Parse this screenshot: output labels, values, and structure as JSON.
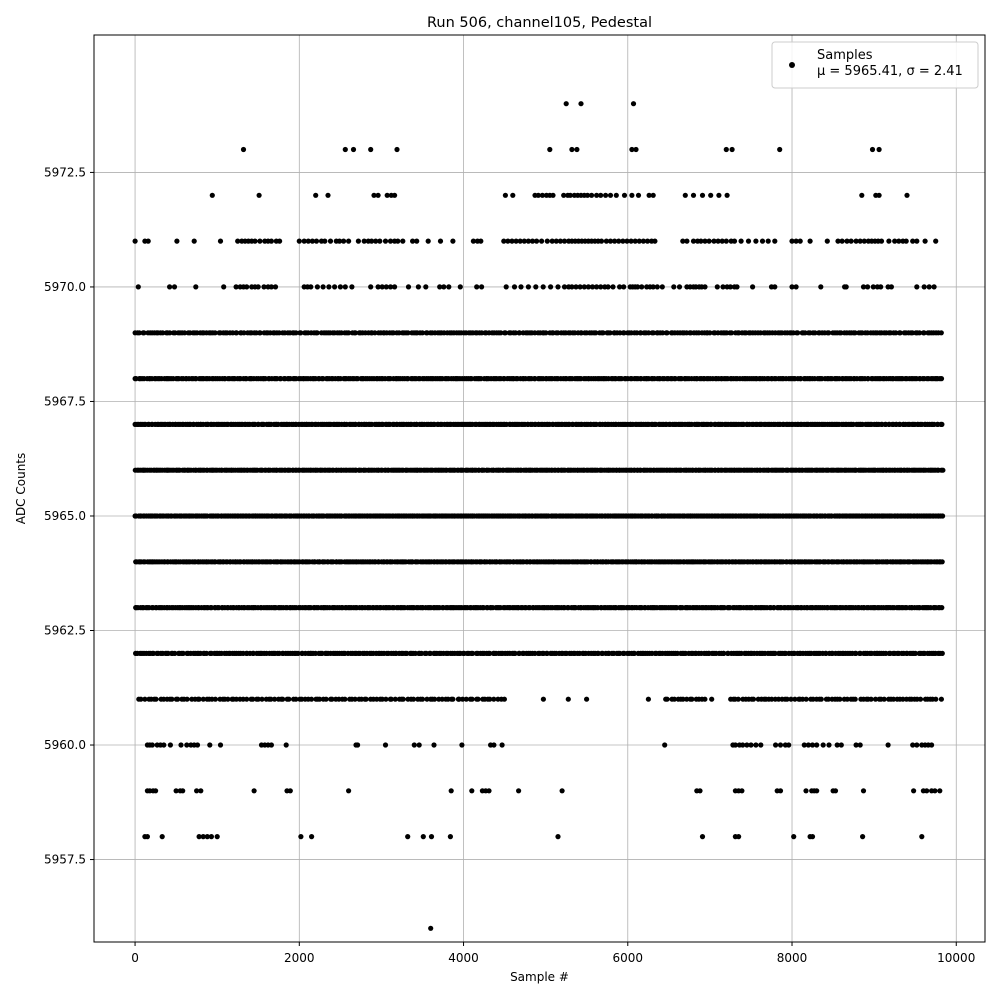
{
  "chart_data": {
    "type": "scatter",
    "title": "Run 506, channel105, Pedestal",
    "xlabel": "Sample #",
    "ylabel": "ADC Counts",
    "xlim": [
      -500,
      10350
    ],
    "ylim": [
      5955.7,
      5975.5
    ],
    "xticks": [
      0,
      2000,
      4000,
      6000,
      8000,
      10000
    ],
    "xtick_labels": [
      "0",
      "2000",
      "4000",
      "6000",
      "8000",
      "10000"
    ],
    "yticks": [
      5957.5,
      5960.0,
      5962.5,
      5965.0,
      5967.5,
      5970.0,
      5972.5
    ],
    "ytick_labels": [
      "5957.5",
      "5960.0",
      "5962.5",
      "5965.0",
      "5967.5",
      "5970.0",
      "5972.5"
    ],
    "grid": true,
    "legend_position": "top-right",
    "marker_color": "#000000",
    "series": [
      {
        "name": "Samples",
        "legend_stats": "μ = 5965.41, σ = 2.41",
        "x_range": [
          0,
          9850
        ],
        "levels": [
          {
            "y": 5956,
            "x": [
              3600
            ]
          },
          {
            "y": 5958,
            "x": [
              120,
              150,
              330,
              780,
              830,
              880,
              930,
              1000,
              2020,
              2150,
              3320,
              3510,
              3610,
              3840,
              5150,
              6910,
              7310,
              7350,
              8020,
              8220,
              8250,
              8860,
              9580
            ]
          },
          {
            "y": 5959,
            "x": [
              150,
              180,
              220,
              250,
              500,
              550,
              580,
              750,
              800,
              1450,
              1850,
              1890,
              2600,
              3850,
              4100,
              4230,
              4270,
              4310,
              4670,
              5200,
              6840,
              6880,
              7310,
              7350,
              7390,
              7820,
              7860,
              8170,
              8240,
              8270,
              8300,
              8500,
              8530,
              8870,
              9480,
              9600,
              9640,
              9700,
              9740,
              9800
            ]
          },
          {
            "y": 5960,
            "x": [
              150,
              180,
              210,
              270,
              310,
              350,
              430,
              560,
              630,
              680,
              720,
              760,
              910,
              1040,
              1540,
              1580,
              1620,
              1660,
              1840,
              2690,
              2710,
              3050,
              3400,
              3460,
              3640,
              3980,
              4330,
              4370,
              4470,
              6450,
              7280,
              7310,
              7360,
              7400,
              7450,
              7500,
              7560,
              7620,
              7800,
              7860,
              7920,
              7960,
              8150,
              8200,
              8250,
              8300,
              8380,
              8450,
              8550,
              8600,
              8780,
              8830,
              9170,
              9470,
              9520,
              9580,
              9620,
              9660,
              9700
            ]
          },
          {
            "type": "band",
            "y": 5961,
            "x_start": 40,
            "x_end": 9840,
            "count": 260,
            "gaps": [
              [
                4520,
                6450
              ],
              [
                6960,
                7250
              ]
            ]
          },
          {
            "type": "band",
            "y": 5962,
            "x_start": 0,
            "x_end": 9850,
            "count": 380,
            "gaps": []
          },
          {
            "type": "band",
            "y": 5963,
            "x_start": 0,
            "x_end": 9850,
            "count": 440,
            "gaps": []
          },
          {
            "type": "band",
            "y": 5964,
            "x_start": 0,
            "x_end": 9850,
            "count": 480,
            "gaps": []
          },
          {
            "type": "band",
            "y": 5965,
            "x_start": 0,
            "x_end": 9850,
            "count": 500,
            "gaps": []
          },
          {
            "type": "band",
            "y": 5966,
            "x_start": 0,
            "x_end": 9850,
            "count": 500,
            "gaps": []
          },
          {
            "type": "band",
            "y": 5967,
            "x_start": 0,
            "x_end": 9850,
            "count": 450,
            "gaps": []
          },
          {
            "type": "band",
            "y": 5968,
            "x_start": 0,
            "x_end": 9850,
            "count": 420,
            "gaps": []
          },
          {
            "type": "band",
            "y": 5969,
            "x_start": 0,
            "x_end": 9850,
            "count": 340,
            "gaps": []
          },
          {
            "y": 5970,
            "x": [
              40,
              420,
              480,
              740,
              1080,
              1230,
              1280,
              1320,
              1360,
              1420,
              1460,
              1500,
              1570,
              1620,
              1660,
              1710,
              2060,
              2100,
              2140,
              2220,
              2290,
              2360,
              2430,
              2500,
              2560,
              2640,
              2870,
              2960,
              3010,
              3060,
              3110,
              3160,
              3330,
              3450,
              3540,
              3710,
              3760,
              3820,
              3960,
              4160,
              4220,
              4520,
              4620,
              4700,
              4790,
              4880,
              4970,
              5060,
              5150,
              5230,
              5280,
              5320,
              5370,
              5420,
              5470,
              5520,
              5570,
              5620,
              5670,
              5720,
              5760,
              5820,
              5900,
              5950,
              6030,
              6060,
              6090,
              6120,
              6170,
              6230,
              6270,
              6310,
              6360,
              6420,
              6560,
              6630,
              6720,
              6760,
              6800,
              6830,
              6870,
              6900,
              6940,
              7090,
              7160,
              7210,
              7250,
              7300,
              7330,
              7520,
              7750,
              7790,
              8000,
              8050,
              8350,
              8640,
              8660,
              8870,
              8920,
              8990,
              9040,
              9080,
              9170,
              9210,
              9520,
              9610,
              9670,
              9730
            ]
          },
          {
            "y": 5971,
            "x": [
              0,
              120,
              160,
              510,
              720,
              1040,
              1250,
              1300,
              1340,
              1380,
              1420,
              1460,
              1520,
              1580,
              1620,
              1660,
              1720,
              1760,
              2000,
              2060,
              2110,
              2160,
              2210,
              2270,
              2310,
              2380,
              2450,
              2490,
              2540,
              2600,
              2720,
              2790,
              2840,
              2880,
              2930,
              2980,
              3050,
              3110,
              3160,
              3200,
              3260,
              3380,
              3430,
              3570,
              3720,
              3870,
              4120,
              4170,
              4210,
              4490,
              4540,
              4590,
              4640,
              4690,
              4740,
              4790,
              4840,
              4890,
              4950,
              5020,
              5080,
              5130,
              5180,
              5230,
              5280,
              5320,
              5360,
              5400,
              5440,
              5480,
              5520,
              5560,
              5600,
              5640,
              5680,
              5740,
              5790,
              5840,
              5890,
              5940,
              5990,
              6040,
              6090,
              6140,
              6190,
              6240,
              6290,
              6330,
              6670,
              6720,
              6800,
              6850,
              6890,
              6940,
              6990,
              7050,
              7100,
              7150,
              7200,
              7260,
              7300,
              7380,
              7470,
              7560,
              7640,
              7710,
              7790,
              8000,
              8050,
              8100,
              8220,
              8430,
              8560,
              8610,
              8670,
              8720,
              8780,
              8830,
              8880,
              8930,
              8970,
              9010,
              9050,
              9090,
              9180,
              9250,
              9300,
              9350,
              9390,
              9470,
              9520,
              9620,
              9750
            ]
          },
          {
            "y": 5972,
            "x": [
              940,
              1510,
              2200,
              2350,
              2910,
              2960,
              3070,
              3120,
              3160,
              4510,
              4600,
              4870,
              4910,
              4960,
              5010,
              5050,
              5090,
              5220,
              5270,
              5300,
              5350,
              5390,
              5430,
              5470,
              5510,
              5560,
              5620,
              5670,
              5730,
              5790,
              5860,
              5960,
              6050,
              6130,
              6260,
              6310,
              6700,
              6800,
              6910,
              7010,
              7110,
              7210,
              8850,
              9020,
              9060,
              9400
            ]
          },
          {
            "y": 5973,
            "x": [
              1320,
              2560,
              2660,
              2870,
              3190,
              5050,
              5320,
              5380,
              6050,
              6100,
              7200,
              7270,
              7850,
              8980,
              9060
            ]
          },
          {
            "y": 5974,
            "x": [
              5250,
              5430,
              6070
            ]
          }
        ]
      }
    ]
  }
}
